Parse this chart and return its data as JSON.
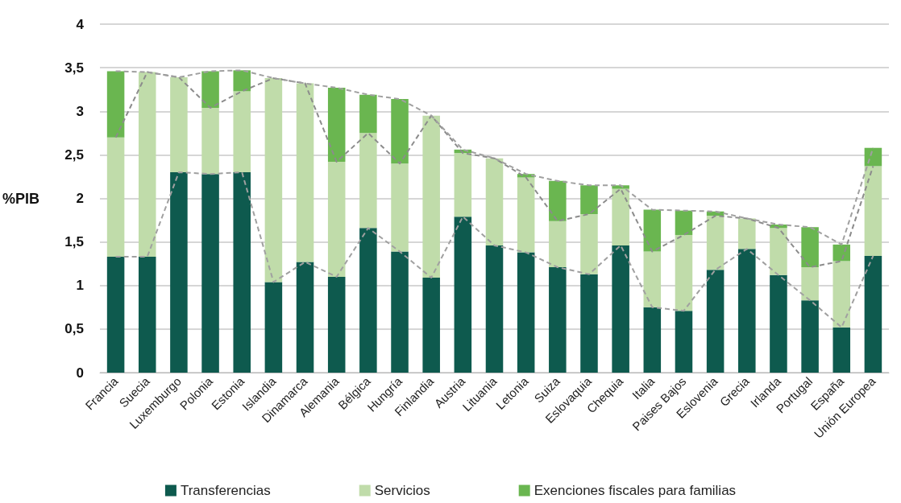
{
  "chart_data": {
    "type": "bar",
    "stacked": true,
    "ylabel": "%PIB",
    "categories": [
      "Francia",
      "Suecia",
      "Luxemburgo",
      "Polonia",
      "Estonia",
      "Islandia",
      "Dinamarca",
      "Alemania",
      "Bélgica",
      "Hungría",
      "Finlandia",
      "Austria",
      "Lituania",
      "Letonia",
      "Suiza",
      "Eslovaquia",
      "Chequia",
      "Italia",
      "Paises Bajos",
      "Eslovenia",
      "Grecia",
      "Irlanda",
      "Portugal",
      "España",
      "Unión Europea"
    ],
    "series": [
      {
        "name": "Transferencias",
        "color": "#0e5a4e",
        "values": [
          1.33,
          1.33,
          2.3,
          2.28,
          2.3,
          1.04,
          1.27,
          1.1,
          1.66,
          1.39,
          1.09,
          1.79,
          1.46,
          1.38,
          1.21,
          1.13,
          1.46,
          0.75,
          0.71,
          1.18,
          1.42,
          1.12,
          0.83,
          0.52,
          1.34
        ]
      },
      {
        "name": "Servicios",
        "color": "#c0dcaa",
        "values": [
          1.37,
          2.12,
          1.09,
          0.76,
          0.93,
          2.34,
          2.05,
          1.32,
          1.09,
          1.01,
          1.86,
          0.73,
          1.0,
          0.86,
          0.53,
          0.69,
          0.65,
          0.64,
          0.87,
          0.62,
          0.35,
          0.54,
          0.38,
          0.76,
          1.03
        ]
      },
      {
        "name": "Exenciones fiscales para familias",
        "color": "#6ab650",
        "values": [
          0.76,
          0,
          0,
          0.42,
          0.24,
          0,
          0,
          0.85,
          0.44,
          0.74,
          0,
          0.04,
          0,
          0.04,
          0.46,
          0.33,
          0.04,
          0.48,
          0.28,
          0.05,
          0,
          0.04,
          0.46,
          0.19,
          0.21
        ]
      },
      {
        "type": "line",
        "color": "#a0a0a0",
        "line_style": "dashed",
        "marker": "none",
        "values": [
          1.33,
          1.33,
          2.3,
          2.28,
          2.3,
          1.04,
          1.27,
          1.1,
          1.66,
          1.39,
          1.09,
          1.79,
          1.46,
          1.38,
          1.21,
          1.13,
          1.46,
          0.75,
          0.71,
          1.18,
          1.42,
          1.12,
          0.83,
          0.52,
          1.34
        ]
      },
      {
        "type": "line",
        "color": "#8c8c8c",
        "line_style": "dashed",
        "marker": "none",
        "values": [
          2.7,
          3.45,
          3.39,
          3.04,
          3.23,
          3.38,
          3.32,
          2.42,
          2.75,
          2.4,
          2.95,
          2.52,
          2.46,
          2.24,
          1.74,
          1.82,
          2.11,
          1.39,
          1.58,
          1.8,
          1.77,
          1.66,
          1.21,
          1.28,
          2.37
        ]
      },
      {
        "type": "line",
        "color": "#a0a0a0",
        "line_style": "dashed",
        "marker": "none",
        "values": [
          3.46,
          3.45,
          3.39,
          3.46,
          3.47,
          3.38,
          3.32,
          3.27,
          3.19,
          3.14,
          2.95,
          2.56,
          2.46,
          2.28,
          2.2,
          2.15,
          2.15,
          1.87,
          1.86,
          1.85,
          1.77,
          1.7,
          1.67,
          1.47,
          2.58
        ]
      }
    ],
    "ylim": [
      0,
      4
    ],
    "yticks": [
      0,
      {
        "value": 0.5,
        "label": "0,5"
      },
      1,
      {
        "value": 1.5,
        "label": "1,5"
      },
      2,
      {
        "value": 2.5,
        "label": "2,5"
      },
      3,
      {
        "value": 3.5,
        "label": "3,5"
      },
      4
    ],
    "grid": "y",
    "legend": "bottom"
  }
}
